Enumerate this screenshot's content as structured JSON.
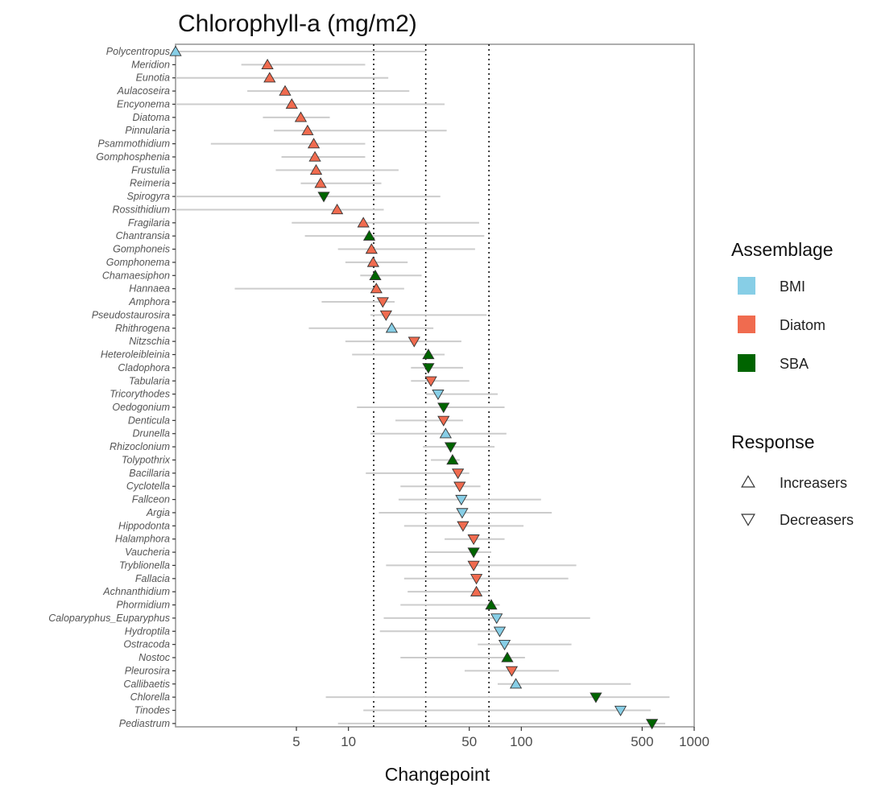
{
  "chart_data": {
    "type": "scatter",
    "title": "Chlorophyll-a (mg/m2)",
    "xlabel": "Changepoint",
    "ylabel": "",
    "x_scale": "log",
    "xlim": [
      1,
      1000
    ],
    "x_ticks": [
      5,
      10,
      50,
      100,
      500,
      1000
    ],
    "x_tick_labels": [
      "5",
      "10",
      "50",
      "100",
      "500",
      "1000"
    ],
    "reference_lines": [
      14,
      28,
      65
    ],
    "grid": false,
    "legend_position": "right",
    "legend": {
      "assemblage_title": "Assemblage",
      "assemblage": [
        {
          "label": "BMI",
          "color": "#87cee6"
        },
        {
          "label": "Diatom",
          "color": "#f06b4f"
        },
        {
          "label": "SBA",
          "color": "#006400"
        }
      ],
      "response_title": "Response",
      "response": [
        {
          "label": "Increasers",
          "shape": "triangle-up"
        },
        {
          "label": "Decreasers",
          "shape": "triangle-down"
        }
      ]
    },
    "colors": {
      "BMI": "#87cee6",
      "Diatom": "#f06b4f",
      "SBA": "#006400",
      "interval": "#cccccc",
      "marker_stroke": "#333333"
    },
    "points": [
      {
        "taxon": "Polycentropus",
        "x": 1.0,
        "lo": 1.0,
        "hi": 28,
        "assemblage": "BMI",
        "response": "Increasers"
      },
      {
        "taxon": "Meridion",
        "x": 3.4,
        "lo": 2.4,
        "hi": 12.5,
        "assemblage": "Diatom",
        "response": "Increasers"
      },
      {
        "taxon": "Eunotia",
        "x": 3.5,
        "lo": 1.0,
        "hi": 17,
        "assemblage": "Diatom",
        "response": "Increasers"
      },
      {
        "taxon": "Aulacoseira",
        "x": 4.3,
        "lo": 2.6,
        "hi": 22.5,
        "assemblage": "Diatom",
        "response": "Increasers"
      },
      {
        "taxon": "Encyonema",
        "x": 4.7,
        "lo": 1.0,
        "hi": 36,
        "assemblage": "Diatom",
        "response": "Increasers"
      },
      {
        "taxon": "Diatoma",
        "x": 5.3,
        "lo": 3.2,
        "hi": 7.8,
        "assemblage": "Diatom",
        "response": "Increasers"
      },
      {
        "taxon": "Pinnularia",
        "x": 5.8,
        "lo": 3.7,
        "hi": 37,
        "assemblage": "Diatom",
        "response": "Increasers"
      },
      {
        "taxon": "Psammothidium",
        "x": 6.3,
        "lo": 1.6,
        "hi": 12.5,
        "assemblage": "Diatom",
        "response": "Increasers"
      },
      {
        "taxon": "Gomphosphenia",
        "x": 6.4,
        "lo": 4.1,
        "hi": 12.5,
        "assemblage": "Diatom",
        "response": "Increasers"
      },
      {
        "taxon": "Frustulia",
        "x": 6.5,
        "lo": 3.8,
        "hi": 19.5,
        "assemblage": "Diatom",
        "response": "Increasers"
      },
      {
        "taxon": "Reimeria",
        "x": 6.9,
        "lo": 5.3,
        "hi": 15.5,
        "assemblage": "Diatom",
        "response": "Increasers"
      },
      {
        "taxon": "Spirogyra",
        "x": 7.2,
        "lo": 1.0,
        "hi": 34,
        "assemblage": "SBA",
        "response": "Decreasers"
      },
      {
        "taxon": "Rossithidium",
        "x": 8.6,
        "lo": 1.0,
        "hi": 16,
        "assemblage": "Diatom",
        "response": "Increasers"
      },
      {
        "taxon": "Fragilaria",
        "x": 12.2,
        "lo": 4.7,
        "hi": 57,
        "assemblage": "Diatom",
        "response": "Increasers"
      },
      {
        "taxon": "Chantransia",
        "x": 13.2,
        "lo": 5.6,
        "hi": 61,
        "assemblage": "SBA",
        "response": "Increasers"
      },
      {
        "taxon": "Gomphoneis",
        "x": 13.6,
        "lo": 8.7,
        "hi": 54,
        "assemblage": "Diatom",
        "response": "Increasers"
      },
      {
        "taxon": "Gomphonema",
        "x": 13.9,
        "lo": 9.6,
        "hi": 22,
        "assemblage": "Diatom",
        "response": "Increasers"
      },
      {
        "taxon": "Chamaesiphon",
        "x": 14.3,
        "lo": 11.7,
        "hi": 26.5,
        "assemblage": "SBA",
        "response": "Increasers"
      },
      {
        "taxon": "Hannaea",
        "x": 14.5,
        "lo": 2.2,
        "hi": 21,
        "assemblage": "Diatom",
        "response": "Increasers"
      },
      {
        "taxon": "Amphora",
        "x": 15.8,
        "lo": 7.0,
        "hi": 18.5,
        "assemblage": "Diatom",
        "response": "Decreasers"
      },
      {
        "taxon": "Pseudostaurosira",
        "x": 16.5,
        "lo": 13.4,
        "hi": 63,
        "assemblage": "Diatom",
        "response": "Decreasers"
      },
      {
        "taxon": "Rhithrogena",
        "x": 17.8,
        "lo": 5.9,
        "hi": 31,
        "assemblage": "BMI",
        "response": "Increasers"
      },
      {
        "taxon": "Nitzschia",
        "x": 24.0,
        "lo": 9.6,
        "hi": 45,
        "assemblage": "Diatom",
        "response": "Decreasers"
      },
      {
        "taxon": "Heteroleibleinia",
        "x": 29.0,
        "lo": 10.5,
        "hi": 36,
        "assemblage": "SBA",
        "response": "Increasers"
      },
      {
        "taxon": "Cladophora",
        "x": 29.0,
        "lo": 23,
        "hi": 46,
        "assemblage": "SBA",
        "response": "Decreasers"
      },
      {
        "taxon": "Tabularia",
        "x": 30.0,
        "lo": 23,
        "hi": 50,
        "assemblage": "Diatom",
        "response": "Decreasers"
      },
      {
        "taxon": "Tricorythodes",
        "x": 33.0,
        "lo": 28,
        "hi": 73,
        "assemblage": "BMI",
        "response": "Decreasers"
      },
      {
        "taxon": "Oedogonium",
        "x": 35.5,
        "lo": 11.2,
        "hi": 80,
        "assemblage": "SBA",
        "response": "Decreasers"
      },
      {
        "taxon": "Denticula",
        "x": 35.5,
        "lo": 18.7,
        "hi": 46,
        "assemblage": "Diatom",
        "response": "Decreasers"
      },
      {
        "taxon": "Drunella",
        "x": 36.5,
        "lo": 13.4,
        "hi": 82,
        "assemblage": "BMI",
        "response": "Increasers"
      },
      {
        "taxon": "Rhizoclonium",
        "x": 39.0,
        "lo": 27,
        "hi": 70,
        "assemblage": "SBA",
        "response": "Decreasers"
      },
      {
        "taxon": "Tolypothrix",
        "x": 40.0,
        "lo": 30,
        "hi": 44,
        "assemblage": "SBA",
        "response": "Increasers"
      },
      {
        "taxon": "Bacillaria",
        "x": 43.0,
        "lo": 12.6,
        "hi": 50,
        "assemblage": "Diatom",
        "response": "Decreasers"
      },
      {
        "taxon": "Cyclotella",
        "x": 44.0,
        "lo": 20,
        "hi": 58,
        "assemblage": "Diatom",
        "response": "Decreasers"
      },
      {
        "taxon": "Fallceon",
        "x": 45.0,
        "lo": 19.5,
        "hi": 130,
        "assemblage": "BMI",
        "response": "Decreasers"
      },
      {
        "taxon": "Argia",
        "x": 45.5,
        "lo": 15,
        "hi": 150,
        "assemblage": "BMI",
        "response": "Decreasers"
      },
      {
        "taxon": "Hippodonta",
        "x": 46.0,
        "lo": 21,
        "hi": 103,
        "assemblage": "Diatom",
        "response": "Decreasers"
      },
      {
        "taxon": "Halamphora",
        "x": 53.0,
        "lo": 36,
        "hi": 80,
        "assemblage": "Diatom",
        "response": "Decreasers"
      },
      {
        "taxon": "Vaucheria",
        "x": 53.0,
        "lo": 28,
        "hi": 67,
        "assemblage": "SBA",
        "response": "Decreasers"
      },
      {
        "taxon": "Tryblionella",
        "x": 53.0,
        "lo": 16.5,
        "hi": 208,
        "assemblage": "Diatom",
        "response": "Decreasers"
      },
      {
        "taxon": "Fallacia",
        "x": 55.0,
        "lo": 21,
        "hi": 187,
        "assemblage": "Diatom",
        "response": "Decreasers"
      },
      {
        "taxon": "Achnanthidium",
        "x": 55.0,
        "lo": 22,
        "hi": 65,
        "assemblage": "Diatom",
        "response": "Increasers"
      },
      {
        "taxon": "Phormidium",
        "x": 67.0,
        "lo": 20,
        "hi": 75,
        "assemblage": "SBA",
        "response": "Increasers"
      },
      {
        "taxon": "Caloparyphus_Euparyphus",
        "x": 72.0,
        "lo": 16,
        "hi": 250,
        "assemblage": "BMI",
        "response": "Decreasers"
      },
      {
        "taxon": "Hydroptila",
        "x": 75.0,
        "lo": 15.2,
        "hi": 73,
        "assemblage": "BMI",
        "response": "Decreasers"
      },
      {
        "taxon": "Ostracoda",
        "x": 80.0,
        "lo": 56,
        "hi": 195,
        "assemblage": "BMI",
        "response": "Decreasers"
      },
      {
        "taxon": "Nostoc",
        "x": 83.0,
        "lo": 20,
        "hi": 105,
        "assemblage": "SBA",
        "response": "Increasers"
      },
      {
        "taxon": "Pleurosira",
        "x": 88.0,
        "lo": 47,
        "hi": 165,
        "assemblage": "Diatom",
        "response": "Decreasers"
      },
      {
        "taxon": "Callibaetis",
        "x": 93.0,
        "lo": 73,
        "hi": 430,
        "assemblage": "BMI",
        "response": "Increasers"
      },
      {
        "taxon": "Chlorella",
        "x": 270.0,
        "lo": 7.4,
        "hi": 720,
        "assemblage": "SBA",
        "response": "Decreasers"
      },
      {
        "taxon": "Tinodes",
        "x": 375.0,
        "lo": 12.2,
        "hi": 560,
        "assemblage": "BMI",
        "response": "Decreasers"
      },
      {
        "taxon": "Pediastrum",
        "x": 570.0,
        "lo": 8.7,
        "hi": 680,
        "assemblage": "SBA",
        "response": "Decreasers"
      }
    ]
  }
}
